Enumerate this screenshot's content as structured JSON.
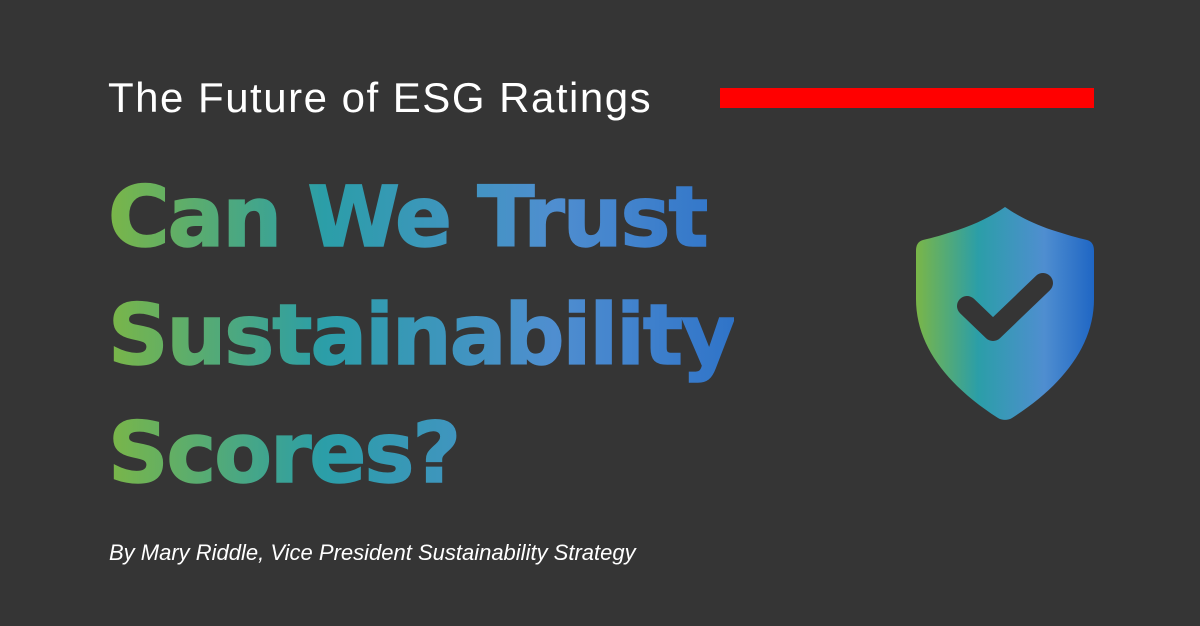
{
  "subtitle": "The Future of ESG Ratings",
  "headline": {
    "lines": [
      "Can We Trust",
      "Sustainability",
      "Scores?"
    ]
  },
  "byline": "By Mary Riddle, Vice President Sustainability Strategy",
  "icons": {
    "shield": "shield-check-icon"
  },
  "colors": {
    "background": "#353535",
    "accent_bar": "#ff0000",
    "subtitle_text": "#ffffff",
    "byline_text": "#ffffff",
    "gradient_green": "#7ab648",
    "gradient_teal": "#2b9ea8",
    "gradient_light_blue": "#4f8ed0",
    "gradient_blue": "#1f66c4",
    "check_mark": "#353535"
  }
}
